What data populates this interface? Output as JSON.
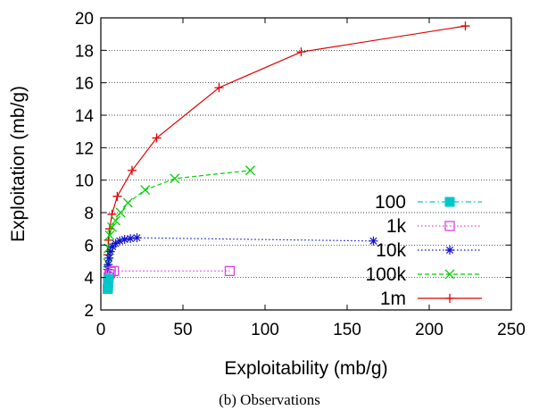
{
  "caption": "(b) Observations",
  "chart_data": {
    "type": "line",
    "title": "",
    "xlabel": "Exploitability (mb/g)",
    "ylabel": "Exploitation (mb/g)",
    "xlim": [
      0,
      250
    ],
    "ylim": [
      2,
      20
    ],
    "xticks": [
      0,
      50,
      100,
      150,
      200,
      250
    ],
    "yticks": [
      2,
      4,
      6,
      8,
      10,
      12,
      14,
      16,
      18,
      20
    ],
    "grid": "horizontal dotted",
    "legend_position": "bottom-right",
    "series": [
      {
        "name": "100",
        "color": "#00c8c8",
        "marker": "filled-square",
        "dash": "dash-dot",
        "x": [
          4.6,
          4.5,
          4.4,
          4.4,
          4.3
        ],
        "y": [
          3.9,
          3.7,
          3.5,
          3.4,
          3.3
        ]
      },
      {
        "name": "1k",
        "color": "#e040e0",
        "marker": "open-square",
        "dash": "dotted",
        "x": [
          4.2,
          4.4,
          4.7,
          5.2,
          6.0,
          8.0,
          78.5
        ],
        "y": [
          3.3,
          3.7,
          4.0,
          4.2,
          4.35,
          4.4,
          4.4
        ]
      },
      {
        "name": "10k",
        "color": "#1010d0",
        "marker": "asterisk",
        "dash": "dotted",
        "x": [
          4.2,
          4.5,
          5.0,
          5.8,
          7.2,
          9.0,
          11.5,
          14.5,
          18.0,
          22.0,
          166.0
        ],
        "y": [
          4.5,
          4.8,
          5.2,
          5.6,
          5.9,
          6.1,
          6.25,
          6.35,
          6.4,
          6.45,
          6.25
        ]
      },
      {
        "name": "100k",
        "color": "#00d000",
        "marker": "cross",
        "dash": "dashed",
        "x": [
          4.2,
          4.6,
          5.4,
          6.8,
          9.0,
          12.0,
          16.5,
          27.0,
          45.0,
          91.0
        ],
        "y": [
          4.9,
          5.8,
          6.6,
          7.1,
          7.5,
          8.0,
          8.6,
          9.4,
          10.1,
          10.6
        ]
      },
      {
        "name": "1m",
        "color": "#e00000",
        "marker": "plus",
        "dash": "solid",
        "x": [
          4.2,
          4.6,
          5.4,
          6.8,
          10.0,
          19.0,
          34.0,
          72.0,
          122.0,
          222.0
        ],
        "y": [
          5.4,
          6.3,
          7.0,
          7.9,
          9.0,
          10.6,
          12.6,
          15.7,
          17.9,
          19.5
        ]
      }
    ]
  }
}
